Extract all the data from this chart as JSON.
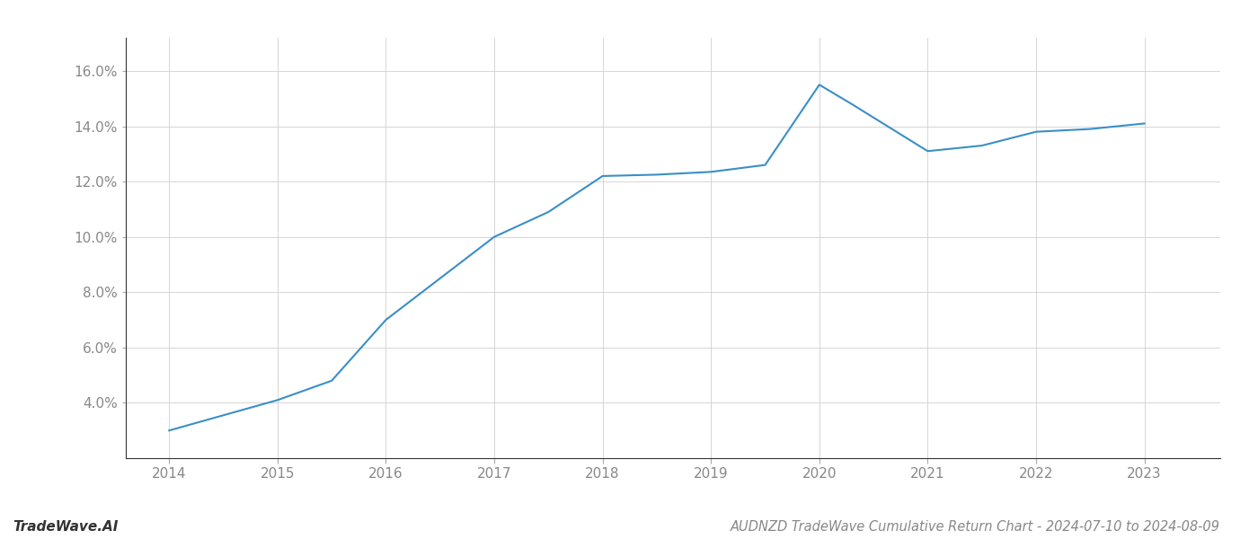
{
  "x_values": [
    2014,
    2015,
    2015.5,
    2016,
    2017,
    2017.5,
    2018,
    2018.5,
    2019,
    2019.5,
    2020,
    2020.3,
    2021,
    2021.5,
    2022,
    2022.5,
    2023
  ],
  "y_values": [
    0.03,
    0.041,
    0.048,
    0.07,
    0.1,
    0.109,
    0.122,
    0.1225,
    0.1235,
    0.126,
    0.155,
    0.148,
    0.131,
    0.133,
    0.138,
    0.139,
    0.141
  ],
  "line_color": "#3a8fc7",
  "line_width": 1.5,
  "background_color": "#ffffff",
  "grid_color": "#d0d0d0",
  "title": "AUDNZD TradeWave Cumulative Return Chart - 2024-07-10 to 2024-08-09",
  "watermark": "TradeWave.AI",
  "xlim": [
    2013.6,
    2023.7
  ],
  "ylim": [
    0.02,
    0.172
  ],
  "yticks": [
    0.04,
    0.06,
    0.08,
    0.1,
    0.12,
    0.14,
    0.16
  ],
  "xticks": [
    2014,
    2015,
    2016,
    2017,
    2018,
    2019,
    2020,
    2021,
    2022,
    2023
  ],
  "title_fontsize": 10.5,
  "watermark_fontsize": 11,
  "tick_fontsize": 11,
  "tick_color": "#888888",
  "spine_color": "#aaaaaa",
  "left_spine_color": "#333333"
}
